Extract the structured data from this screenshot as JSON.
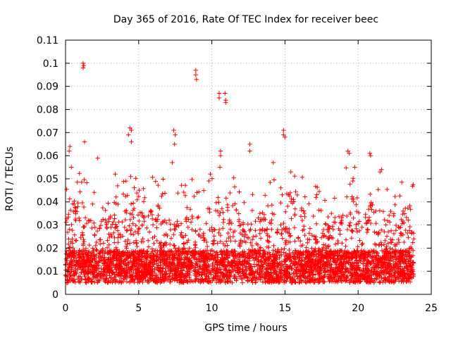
{
  "chart_data": {
    "type": "scatter",
    "title": "Day 365 of 2016, Rate Of TEC Index for receiver beec",
    "xlabel": "GPS time / hours",
    "ylabel": "ROTI / TECUs",
    "xlim": [
      0,
      25
    ],
    "ylim": [
      0,
      0.11
    ],
    "xticks": [
      0,
      5,
      10,
      15,
      20,
      25
    ],
    "xtick_labels": [
      "0",
      "5",
      "10",
      "15",
      "20",
      "25"
    ],
    "yticks": [
      0,
      0.01,
      0.02,
      0.03,
      0.04,
      0.05,
      0.06,
      0.07,
      0.08,
      0.09,
      0.1,
      0.11
    ],
    "ytick_labels": [
      "0",
      "0.01",
      "0.02",
      "0.03",
      "0.04",
      "0.05",
      "0.06",
      "0.07",
      "0.08",
      "0.09",
      "0.1",
      "0.11"
    ],
    "grid": true,
    "marker": "plus",
    "series_color": "#ff0000",
    "x_range_of_data": [
      0,
      23.8
    ],
    "outliers": [
      {
        "x": 1.2,
        "y": 0.1
      },
      {
        "x": 1.2,
        "y": 0.098
      },
      {
        "x": 1.25,
        "y": 0.099
      },
      {
        "x": 8.9,
        "y": 0.097
      },
      {
        "x": 8.9,
        "y": 0.095
      },
      {
        "x": 8.95,
        "y": 0.093
      },
      {
        "x": 10.5,
        "y": 0.087
      },
      {
        "x": 10.5,
        "y": 0.085
      },
      {
        "x": 10.9,
        "y": 0.087
      },
      {
        "x": 10.95,
        "y": 0.084
      },
      {
        "x": 10.95,
        "y": 0.083
      },
      {
        "x": 4.4,
        "y": 0.072
      },
      {
        "x": 4.5,
        "y": 0.071
      },
      {
        "x": 4.3,
        "y": 0.069
      },
      {
        "x": 7.4,
        "y": 0.071
      },
      {
        "x": 7.5,
        "y": 0.069
      },
      {
        "x": 7.45,
        "y": 0.065
      },
      {
        "x": 14.9,
        "y": 0.071
      },
      {
        "x": 14.9,
        "y": 0.069
      },
      {
        "x": 15.0,
        "y": 0.068
      },
      {
        "x": 0.3,
        "y": 0.064
      },
      {
        "x": 0.25,
        "y": 0.062
      },
      {
        "x": 1.3,
        "y": 0.066
      },
      {
        "x": 12.6,
        "y": 0.065
      },
      {
        "x": 12.6,
        "y": 0.062
      },
      {
        "x": 10.6,
        "y": 0.062
      },
      {
        "x": 10.6,
        "y": 0.06
      },
      {
        "x": 19.3,
        "y": 0.062
      },
      {
        "x": 19.4,
        "y": 0.061
      },
      {
        "x": 20.8,
        "y": 0.061
      },
      {
        "x": 20.85,
        "y": 0.06
      },
      {
        "x": 4.5,
        "y": 0.066
      },
      {
        "x": 2.2,
        "y": 0.059
      },
      {
        "x": 14.2,
        "y": 0.057
      },
      {
        "x": 7.3,
        "y": 0.057
      },
      {
        "x": 21.6,
        "y": 0.054
      },
      {
        "x": 21.5,
        "y": 0.053
      },
      {
        "x": 9.9,
        "y": 0.052
      },
      {
        "x": 3.4,
        "y": 0.052
      },
      {
        "x": 0.4,
        "y": 0.055
      },
      {
        "x": 15.4,
        "y": 0.053
      }
    ]
  }
}
